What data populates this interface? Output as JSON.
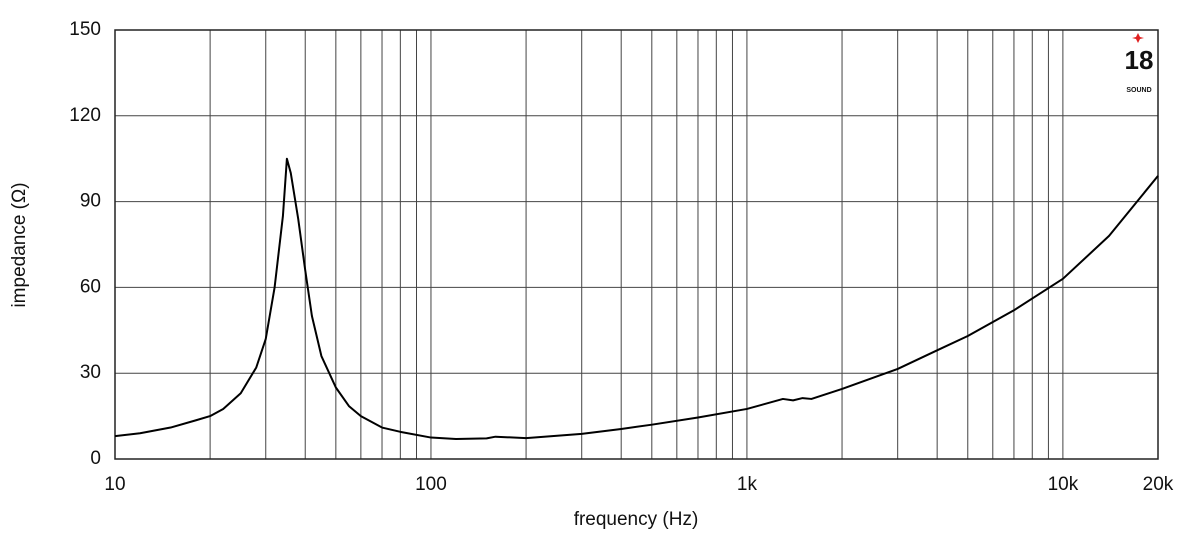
{
  "chart_data": {
    "type": "line",
    "xlabel": "frequency (Hz)",
    "ylabel": "impedance (Ω)",
    "xscale": "log",
    "grid": true,
    "xlim": [
      10,
      20000
    ],
    "ylim": [
      0,
      150
    ],
    "xticks": [
      10,
      100,
      {
        "value": 1000,
        "label": "1k"
      },
      {
        "value": 10000,
        "label": "10k"
      },
      {
        "value": 20000,
        "label": "20k"
      }
    ],
    "xminorticks": [
      20,
      30,
      40,
      50,
      60,
      70,
      80,
      90,
      200,
      300,
      400,
      500,
      600,
      700,
      800,
      900,
      2000,
      3000,
      4000,
      5000,
      6000,
      7000,
      8000,
      9000
    ],
    "yticks": [
      0,
      30,
      60,
      90,
      120,
      150
    ],
    "x": [
      10,
      12,
      15,
      18,
      20,
      22,
      25,
      28,
      30,
      32,
      34,
      35,
      36,
      38,
      40,
      42,
      45,
      50,
      55,
      60,
      70,
      80,
      100,
      120,
      150,
      160,
      200,
      300,
      400,
      500,
      700,
      1000,
      1300,
      1400,
      1500,
      1600,
      2000,
      3000,
      4000,
      5000,
      7000,
      10000,
      14000,
      20000
    ],
    "series": [
      {
        "name": "impedance",
        "color": "#000000",
        "values": [
          8,
          9,
          11,
          13.5,
          15,
          17.5,
          23,
          32,
          42,
          60,
          85,
          105,
          100,
          84,
          66,
          50,
          36,
          25,
          18.5,
          15,
          11,
          9.5,
          7.5,
          7,
          7.2,
          7.8,
          7.3,
          8.8,
          10.5,
          12,
          14.5,
          17.5,
          21,
          20.5,
          21.3,
          21,
          24.5,
          31.5,
          38,
          43,
          52,
          63,
          78,
          99
        ]
      }
    ]
  },
  "logo": {
    "number": "18",
    "text": "SOUND"
  }
}
